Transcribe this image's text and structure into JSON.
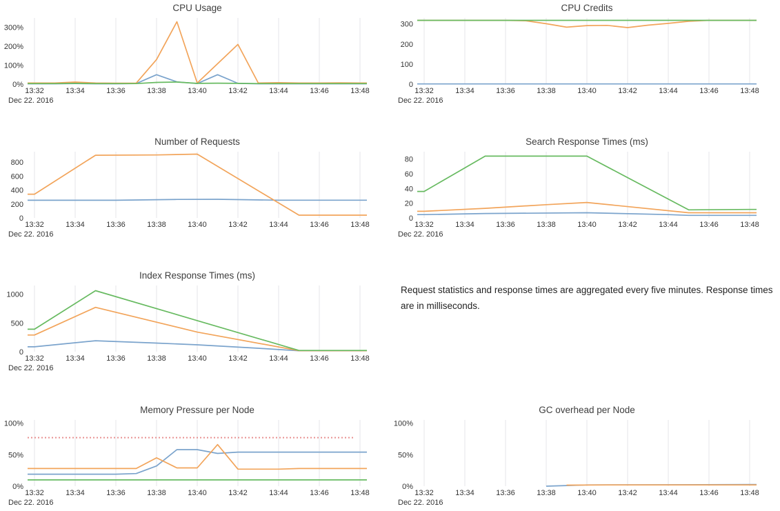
{
  "note": {
    "text": "Request statistics and response times are aggregated every five minutes. Response times are in milliseconds."
  },
  "colors": {
    "blue": "#7aa3cc",
    "orange": "#f2a45a",
    "green": "#67ba60",
    "red": "#e89090",
    "grid": "#e4e6e9",
    "tick_text": "#333333",
    "title_text": "#3d3d3d"
  },
  "x_axis": {
    "tick_labels": [
      "13:32",
      "13:34",
      "13:36",
      "13:38",
      "13:40",
      "13:42",
      "13:44",
      "13:46",
      "13:48"
    ],
    "tick_minutes": [
      32,
      34,
      36,
      38,
      40,
      42,
      44,
      46,
      48
    ],
    "date_label": "Dec 22. 2016"
  },
  "chart_data": [
    {
      "type": "line",
      "title": "CPU Usage",
      "xlabel": "",
      "ylabel": "",
      "ylim": [
        0,
        350
      ],
      "yticks": [
        0,
        100,
        200,
        300
      ],
      "ytick_labels": [
        "0%",
        "100%",
        "200%",
        "300%"
      ],
      "x_tick_labels": [
        "13:32",
        "13:34",
        "13:36",
        "13:38",
        "13:40",
        "13:42",
        "13:44",
        "13:46",
        "13:48"
      ],
      "grid": "vertical",
      "legend": "none",
      "series": [
        {
          "color": "blue",
          "points": [
            [
              32,
              2
            ],
            [
              33,
              2
            ],
            [
              34,
              3
            ],
            [
              35,
              2
            ],
            [
              36,
              2
            ],
            [
              37,
              3
            ],
            [
              38,
              50
            ],
            [
              39,
              12
            ],
            [
              40,
              3
            ],
            [
              41,
              50
            ],
            [
              42,
              4
            ],
            [
              43,
              2
            ],
            [
              44,
              2
            ],
            [
              45,
              2
            ],
            [
              46,
              2
            ],
            [
              47,
              2
            ],
            [
              48,
              2
            ]
          ]
        },
        {
          "color": "orange",
          "points": [
            [
              32,
              6
            ],
            [
              33,
              6
            ],
            [
              34,
              11
            ],
            [
              35,
              6
            ],
            [
              36,
              5
            ],
            [
              37,
              5
            ],
            [
              38,
              130
            ],
            [
              39,
              330
            ],
            [
              40,
              6
            ],
            [
              42,
              210
            ],
            [
              43,
              6
            ],
            [
              44,
              8
            ],
            [
              45,
              6
            ],
            [
              46,
              6
            ],
            [
              47,
              7
            ],
            [
              48,
              6
            ]
          ]
        },
        {
          "color": "green",
          "points": [
            [
              32,
              3
            ],
            [
              33,
              3
            ],
            [
              34,
              4
            ],
            [
              35,
              3
            ],
            [
              36,
              3
            ],
            [
              37,
              3
            ],
            [
              38,
              9
            ],
            [
              39,
              11
            ],
            [
              40,
              4
            ],
            [
              41,
              5
            ],
            [
              42,
              4
            ],
            [
              43,
              3
            ],
            [
              44,
              3
            ],
            [
              45,
              3
            ],
            [
              46,
              3
            ],
            [
              47,
              3
            ],
            [
              48,
              3
            ]
          ]
        }
      ]
    },
    {
      "type": "line",
      "title": "CPU Credits",
      "xlabel": "",
      "ylabel": "",
      "ylim": [
        0,
        330
      ],
      "yticks": [
        0,
        100,
        200,
        300
      ],
      "ytick_labels": [
        "0",
        "100",
        "200",
        "300"
      ],
      "x_tick_labels": [
        "13:32",
        "13:34",
        "13:36",
        "13:38",
        "13:40",
        "13:42",
        "13:44",
        "13:46",
        "13:48"
      ],
      "grid": "vertical",
      "legend": "none",
      "series": [
        {
          "color": "blue",
          "points": [
            [
              32,
              1
            ],
            [
              48,
              1
            ]
          ]
        },
        {
          "color": "orange",
          "points": [
            [
              32,
              318
            ],
            [
              36,
              318
            ],
            [
              37,
              316
            ],
            [
              38,
              301
            ],
            [
              39,
              284
            ],
            [
              40,
              292
            ],
            [
              41,
              293
            ],
            [
              42,
              282
            ],
            [
              43,
              294
            ],
            [
              44,
              303
            ],
            [
              45,
              313
            ],
            [
              46,
              318
            ],
            [
              47,
              318
            ],
            [
              48,
              318
            ]
          ]
        },
        {
          "color": "green",
          "points": [
            [
              32,
              318
            ],
            [
              48,
              318
            ]
          ]
        }
      ]
    },
    {
      "type": "line",
      "title": "Number of Requests",
      "xlabel": "",
      "ylabel": "",
      "ylim": [
        0,
        950
      ],
      "yticks": [
        0,
        200,
        400,
        600,
        800
      ],
      "ytick_labels": [
        "0",
        "200",
        "400",
        "600",
        "800"
      ],
      "x_tick_labels": [
        "13:32",
        "13:34",
        "13:36",
        "13:38",
        "13:40",
        "13:42",
        "13:44",
        "13:46",
        "13:48"
      ],
      "grid": "vertical",
      "legend": "none",
      "series": [
        {
          "color": "blue",
          "points": [
            [
              32,
              253
            ],
            [
              36,
              253
            ],
            [
              39,
              265
            ],
            [
              41,
              267
            ],
            [
              44,
              254
            ],
            [
              48,
              254
            ]
          ]
        },
        {
          "color": "orange",
          "points": [
            [
              32,
              340
            ],
            [
              35,
              900
            ],
            [
              38,
              903
            ],
            [
              40,
              915
            ],
            [
              45,
              40
            ],
            [
              48,
              40
            ]
          ]
        }
      ]
    },
    {
      "type": "line",
      "title": "Search Response Times (ms)",
      "xlabel": "",
      "ylabel": "",
      "ylim": [
        0,
        90
      ],
      "yticks": [
        0,
        20,
        40,
        60,
        80
      ],
      "ytick_labels": [
        "0",
        "20",
        "40",
        "60",
        "80"
      ],
      "x_tick_labels": [
        "13:32",
        "13:34",
        "13:36",
        "13:38",
        "13:40",
        "13:42",
        "13:44",
        "13:46",
        "13:48"
      ],
      "grid": "vertical",
      "legend": "none",
      "series": [
        {
          "color": "blue",
          "points": [
            [
              32,
              4.5
            ],
            [
              35,
              6
            ],
            [
              40,
              7
            ],
            [
              44,
              4.5
            ],
            [
              45,
              3.5
            ],
            [
              48,
              3.5
            ]
          ]
        },
        {
          "color": "orange",
          "points": [
            [
              32,
              9
            ],
            [
              35,
              13
            ],
            [
              38,
              18
            ],
            [
              40,
              21
            ],
            [
              45,
              7
            ],
            [
              48,
              7
            ]
          ]
        },
        {
          "color": "green",
          "points": [
            [
              32,
              36
            ],
            [
              35,
              84
            ],
            [
              40,
              84
            ],
            [
              45,
              11
            ],
            [
              48,
              11.5
            ]
          ]
        }
      ]
    },
    {
      "type": "line",
      "title": "Index Response Times (ms)",
      "xlabel": "",
      "ylabel": "",
      "ylim": [
        0,
        1150
      ],
      "yticks": [
        0,
        500,
        1000
      ],
      "ytick_labels": [
        "0",
        "500",
        "1000"
      ],
      "x_tick_labels": [
        "13:32",
        "13:34",
        "13:36",
        "13:38",
        "13:40",
        "13:42",
        "13:44",
        "13:46",
        "13:48"
      ],
      "grid": "vertical",
      "legend": "none",
      "series": [
        {
          "color": "blue",
          "points": [
            [
              32,
              85
            ],
            [
              35,
              190
            ],
            [
              38,
              150
            ],
            [
              40,
              120
            ],
            [
              43,
              60
            ],
            [
              45,
              15
            ],
            [
              48,
              15
            ]
          ]
        },
        {
          "color": "orange",
          "points": [
            [
              32,
              290
            ],
            [
              35,
              770
            ],
            [
              40,
              340
            ],
            [
              45,
              18
            ],
            [
              48,
              18
            ]
          ]
        },
        {
          "color": "green",
          "points": [
            [
              32,
              390
            ],
            [
              35,
              1060
            ],
            [
              40,
              540
            ],
            [
              45,
              22
            ],
            [
              48,
              22
            ]
          ]
        }
      ]
    },
    {
      "type": "line",
      "title": "Memory Pressure per Node",
      "xlabel": "",
      "ylabel": "",
      "ylim": [
        0,
        105
      ],
      "yticks": [
        0,
        50,
        100
      ],
      "ytick_labels": [
        "0%",
        "50%",
        "100%"
      ],
      "x_tick_labels": [
        "13:32",
        "13:34",
        "13:36",
        "13:38",
        "13:40",
        "13:42",
        "13:44",
        "13:46",
        "13:48"
      ],
      "grid": "vertical",
      "legend": "none",
      "threshold": {
        "value": 77,
        "color": "red",
        "style": "dotted"
      },
      "series": [
        {
          "color": "blue",
          "points": [
            [
              32,
              19
            ],
            [
              36,
              19
            ],
            [
              37,
              20
            ],
            [
              38,
              32
            ],
            [
              39,
              58
            ],
            [
              40,
              58
            ],
            [
              41,
              52
            ],
            [
              42,
              54
            ],
            [
              48,
              54
            ]
          ]
        },
        {
          "color": "orange",
          "points": [
            [
              32,
              28
            ],
            [
              37,
              28
            ],
            [
              38,
              45
            ],
            [
              39,
              29
            ],
            [
              40,
              29
            ],
            [
              41,
              66
            ],
            [
              42,
              27
            ],
            [
              44,
              27
            ],
            [
              45,
              28
            ],
            [
              48,
              28
            ]
          ]
        },
        {
          "color": "green",
          "points": [
            [
              32,
              10
            ],
            [
              48,
              10
            ]
          ]
        }
      ]
    },
    {
      "type": "line",
      "title": "GC overhead per Node",
      "xlabel": "",
      "ylabel": "",
      "ylim": [
        0,
        105
      ],
      "yticks": [
        0,
        50,
        100
      ],
      "ytick_labels": [
        "0%",
        "50%",
        "100%"
      ],
      "x_tick_labels": [
        "13:32",
        "13:34",
        "13:36",
        "13:38",
        "13:40",
        "13:42",
        "13:44",
        "13:46",
        "13:48"
      ],
      "grid": "vertical",
      "legend": "none",
      "series": [
        {
          "color": "blue",
          "points": [
            [
              38,
              0
            ],
            [
              39,
              1
            ],
            [
              40,
              2
            ],
            [
              44,
              2.2
            ],
            [
              48,
              2.6
            ]
          ],
          "extend_left": false
        },
        {
          "color": "orange",
          "points": [
            [
              39,
              1.6
            ],
            [
              41,
              2
            ],
            [
              48,
              2
            ]
          ],
          "extend_left": false
        }
      ]
    }
  ]
}
